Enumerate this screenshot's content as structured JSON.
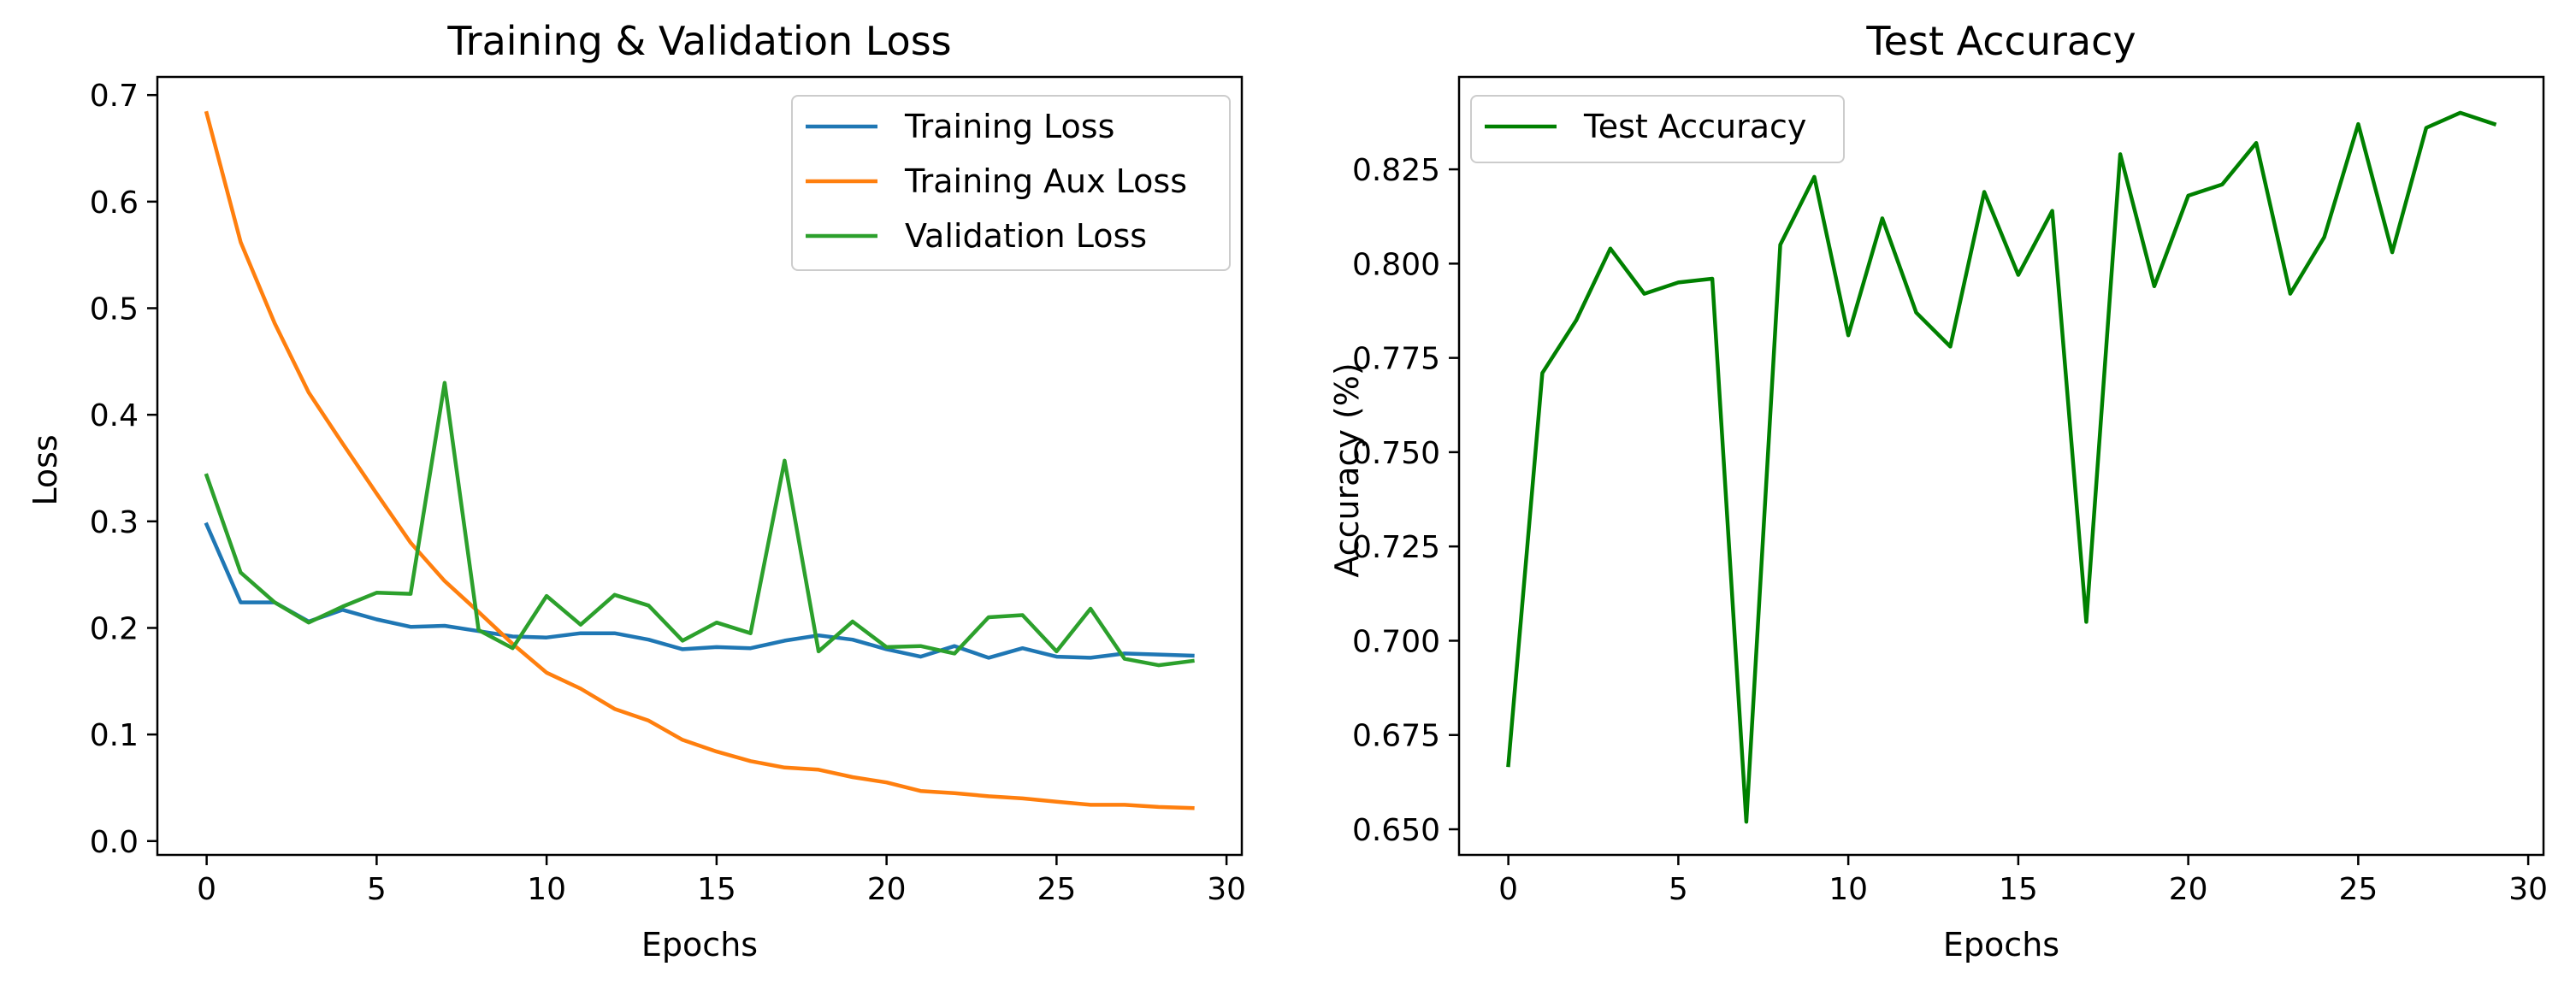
{
  "chart_data": [
    {
      "type": "line",
      "title": "Training & Validation Loss",
      "xlabel": "Epochs",
      "ylabel": "Loss",
      "xlim": [
        -1.45,
        30.45
      ],
      "ylim": [
        -0.013,
        0.717
      ],
      "xticks": [
        0,
        5,
        10,
        15,
        20,
        25,
        30
      ],
      "yticks": [
        0.0,
        0.1,
        0.2,
        0.3,
        0.4,
        0.5,
        0.6,
        0.7
      ],
      "ytick_format": 1,
      "grid": false,
      "legend": "top-right",
      "x": [
        0,
        1,
        2,
        3,
        4,
        5,
        6,
        7,
        8,
        9,
        10,
        11,
        12,
        13,
        14,
        15,
        16,
        17,
        18,
        19,
        20,
        21,
        22,
        23,
        24,
        25,
        26,
        27,
        28,
        29
      ],
      "series": [
        {
          "name": "Training Loss",
          "color": "#1f77b4",
          "values": [
            0.297,
            0.224,
            0.224,
            0.206,
            0.217,
            0.208,
            0.201,
            0.202,
            0.197,
            0.192,
            0.191,
            0.195,
            0.195,
            0.189,
            0.18,
            0.182,
            0.181,
            0.188,
            0.193,
            0.189,
            0.18,
            0.173,
            0.183,
            0.172,
            0.181,
            0.173,
            0.172,
            0.176,
            0.175,
            0.174
          ]
        },
        {
          "name": "Training Aux Loss",
          "color": "#ff7f0e",
          "values": [
            0.683,
            0.562,
            0.486,
            0.421,
            0.373,
            0.326,
            0.28,
            0.244,
            0.215,
            0.185,
            0.158,
            0.143,
            0.124,
            0.113,
            0.095,
            0.084,
            0.075,
            0.069,
            0.067,
            0.06,
            0.055,
            0.047,
            0.045,
            0.042,
            0.04,
            0.037,
            0.034,
            0.034,
            0.032,
            0.031
          ]
        },
        {
          "name": "Validation Loss",
          "color": "#2ca02c",
          "values": [
            0.343,
            0.252,
            0.224,
            0.205,
            0.22,
            0.233,
            0.232,
            0.43,
            0.198,
            0.181,
            0.23,
            0.203,
            0.231,
            0.221,
            0.188,
            0.205,
            0.195,
            0.357,
            0.178,
            0.206,
            0.182,
            0.183,
            0.176,
            0.21,
            0.212,
            0.178,
            0.218,
            0.171,
            0.165,
            0.169
          ]
        }
      ]
    },
    {
      "type": "line",
      "title": "Test Accuracy",
      "xlabel": "Epochs",
      "ylabel": "Accuracy (%)",
      "xlim": [
        -1.45,
        30.45
      ],
      "ylim": [
        0.6432,
        0.8495
      ],
      "xticks": [
        0,
        5,
        10,
        15,
        20,
        25,
        30
      ],
      "yticks": [
        0.65,
        0.675,
        0.7,
        0.725,
        0.75,
        0.775,
        0.8,
        0.825
      ],
      "ytick_format": 3,
      "grid": false,
      "legend": "top-left",
      "x": [
        0,
        1,
        2,
        3,
        4,
        5,
        6,
        7,
        8,
        9,
        10,
        11,
        12,
        13,
        14,
        15,
        16,
        17,
        18,
        19,
        20,
        21,
        22,
        23,
        24,
        25,
        26,
        27,
        28,
        29
      ],
      "series": [
        {
          "name": "Test Accuracy",
          "color": "#008000",
          "values": [
            0.667,
            0.771,
            0.785,
            0.804,
            0.792,
            0.795,
            0.796,
            0.652,
            0.805,
            0.823,
            0.781,
            0.812,
            0.787,
            0.778,
            0.819,
            0.797,
            0.814,
            0.705,
            0.829,
            0.794,
            0.818,
            0.821,
            0.832,
            0.792,
            0.807,
            0.837,
            0.803,
            0.836,
            0.84,
            0.837
          ]
        }
      ]
    }
  ]
}
